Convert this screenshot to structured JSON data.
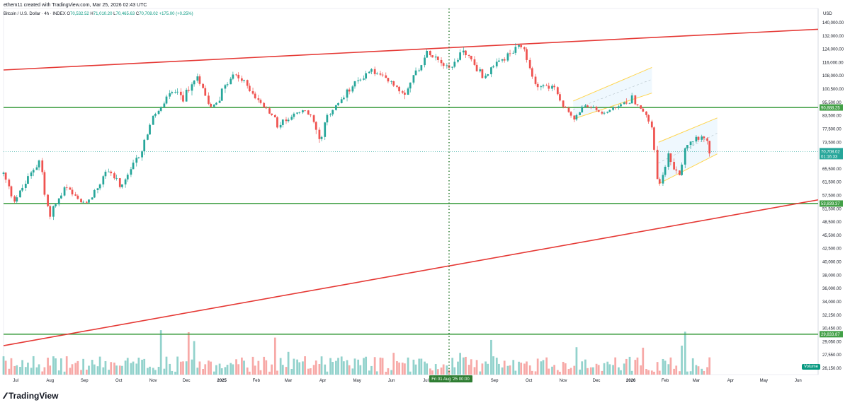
{
  "header": {
    "attribution": "ethem11 created with TradingView.com, Mar 25, 2026 02:43 UTC",
    "symbol": "Bitcoin / U.S. Dollar · 4h · INDEX",
    "ohlc": {
      "open_label": "O",
      "open": "70,532.52",
      "high_label": "H",
      "high": "71,010.20",
      "low_label": "L",
      "low": "70,465.63",
      "close_label": "C",
      "close": "70,708.02",
      "change": "+175.00 (+0.25%)"
    }
  },
  "brand": {
    "logo_text": "TradingView"
  },
  "volume_label": "Volume",
  "colors": {
    "up": "#26a69a",
    "down": "#ef5350",
    "trendline": "#e53935",
    "hline": "#43a047",
    "channel": "#ffd54f",
    "vline": "#2e7d32"
  },
  "chart_data": {
    "type": "candlestick",
    "yaxis_unit": "USD",
    "y_ticks": [
      140000,
      132000,
      124000,
      116000,
      108000,
      100500,
      95500,
      83500,
      77500,
      73500,
      69500,
      65500,
      61500,
      57500,
      51500,
      48500,
      45500,
      42500,
      40000,
      38000,
      36000,
      34000,
      32250,
      30450,
      29050,
      27550,
      26150
    ],
    "y_tick_labels": [
      "140,000.00",
      "132,000.00",
      "124,000.00",
      "116,000.00",
      "108,000.00",
      "100,500.00",
      "95,500.00",
      "83,500.00",
      "77,500.00",
      "73,500.00",
      "69,500.00",
      "65,500.00",
      "61,500.00",
      "57,500.00",
      "51,500.00",
      "48,500.00",
      "45,500.00",
      "42,500.00",
      "40,000.00",
      "38,000.00",
      "36,000.00",
      "34,000.00",
      "32,250.00",
      "30,450.00",
      "29,050.00",
      "27,550.00",
      "26,150.00"
    ],
    "x_ticks": [
      "Jul",
      "Aug",
      "Sep",
      "Oct",
      "Nov",
      "Dec",
      "2025",
      "Feb",
      "Mar",
      "Apr",
      "May",
      "Jun",
      "Jul",
      "Sep",
      "Oct",
      "Nov",
      "Dec",
      "2026",
      "Feb",
      "Mar",
      "Apr",
      "May",
      "Jun"
    ],
    "price_path": [
      {
        "date": "2024-06-25",
        "price": 64000
      },
      {
        "date": "2024-07-05",
        "price": 55500
      },
      {
        "date": "2024-07-28",
        "price": 68500
      },
      {
        "date": "2024-08-05",
        "price": 49500
      },
      {
        "date": "2024-08-20",
        "price": 60000
      },
      {
        "date": "2024-09-06",
        "price": 53500
      },
      {
        "date": "2024-09-28",
        "price": 65500
      },
      {
        "date": "2024-10-10",
        "price": 59500
      },
      {
        "date": "2024-10-29",
        "price": 72000
      },
      {
        "date": "2024-11-12",
        "price": 88000
      },
      {
        "date": "2024-11-22",
        "price": 99000
      },
      {
        "date": "2024-12-05",
        "price": 97000
      },
      {
        "date": "2024-12-17",
        "price": 108000
      },
      {
        "date": "2024-12-30",
        "price": 92000
      },
      {
        "date": "2025-01-20",
        "price": 109000
      },
      {
        "date": "2025-02-10",
        "price": 96500
      },
      {
        "date": "2025-02-28",
        "price": 79000
      },
      {
        "date": "2025-03-24",
        "price": 88000
      },
      {
        "date": "2025-04-07",
        "price": 74500
      },
      {
        "date": "2025-04-22",
        "price": 93500
      },
      {
        "date": "2025-05-22",
        "price": 111500
      },
      {
        "date": "2025-06-22",
        "price": 99000
      },
      {
        "date": "2025-07-14",
        "price": 123000
      },
      {
        "date": "2025-08-03",
        "price": 112500
      },
      {
        "date": "2025-08-14",
        "price": 124000
      },
      {
        "date": "2025-09-01",
        "price": 107500
      },
      {
        "date": "2025-09-18",
        "price": 117500
      },
      {
        "date": "2025-10-06",
        "price": 126000
      },
      {
        "date": "2025-10-17",
        "price": 104000
      },
      {
        "date": "2025-11-04",
        "price": 101000
      },
      {
        "date": "2025-11-21",
        "price": 82000
      },
      {
        "date": "2025-12-03",
        "price": 93500
      },
      {
        "date": "2025-12-18",
        "price": 85500
      },
      {
        "date": "2026-01-14",
        "price": 97500
      },
      {
        "date": "2026-01-31",
        "price": 78000
      },
      {
        "date": "2026-02-06",
        "price": 60000
      },
      {
        "date": "2026-02-15",
        "price": 69500
      },
      {
        "date": "2026-02-24",
        "price": 63000
      },
      {
        "date": "2026-03-04",
        "price": 73500
      },
      {
        "date": "2026-03-17",
        "price": 76000
      },
      {
        "date": "2026-03-25",
        "price": 70708
      }
    ],
    "horizontal_lines": [
      {
        "price": 90888.25,
        "label": "90,888.25"
      },
      {
        "price": 53839.37,
        "label": "53,839.37"
      },
      {
        "price": 29833.87,
        "label": "29,833.87"
      }
    ],
    "trendlines": [
      {
        "from": {
          "date": "2024-06-25",
          "price": 111500
        },
        "to": {
          "date": "2026-06-30",
          "price": 136000
        }
      },
      {
        "from": {
          "date": "2024-06-25",
          "price": 28600
        },
        "to": {
          "date": "2026-06-30",
          "price": 55500
        }
      }
    ],
    "channels": [
      {
        "from": {
          "date": "2025-11-21",
          "price": 82000
        },
        "to": {
          "date": "2026-01-31",
          "price": 99000
        },
        "width": 14000
      },
      {
        "from": {
          "date": "2026-02-06",
          "price": 61000
        },
        "to": {
          "date": "2026-03-31",
          "price": 70000
        },
        "width": 12500
      }
    ],
    "vertical_line": {
      "date": "2025-08-01",
      "label": "Fri 01 Aug '25  00:00"
    },
    "last_price": {
      "price": 70708.02,
      "label": "70,708.02",
      "countdown": "01:16:33"
    }
  }
}
